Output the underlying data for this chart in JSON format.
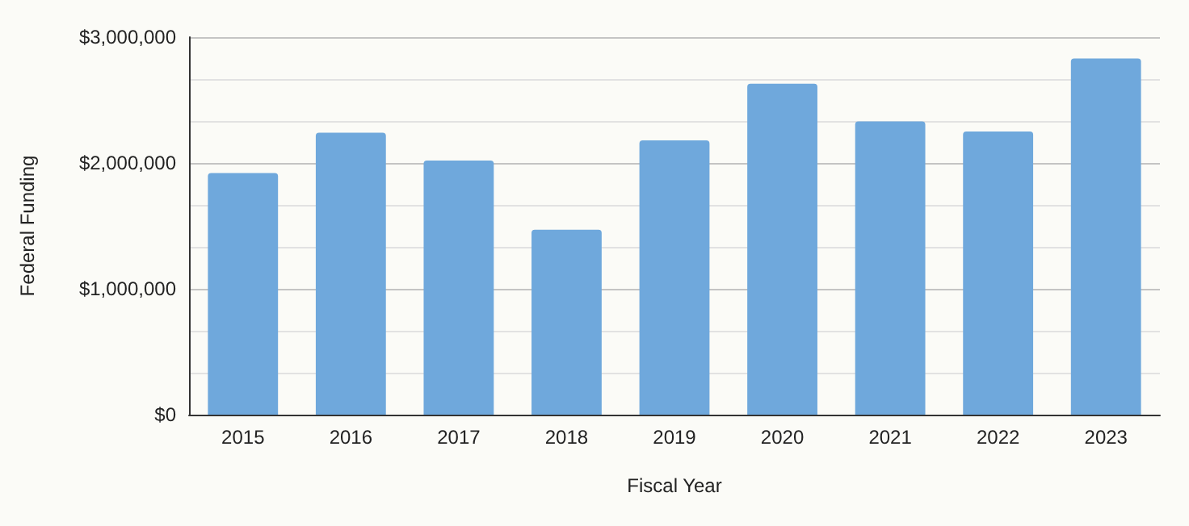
{
  "chart_data": {
    "type": "bar",
    "xlabel": "Fiscal Year",
    "ylabel": "Federal Funding",
    "categories": [
      "2015",
      "2016",
      "2017",
      "2018",
      "2019",
      "2020",
      "2021",
      "2022",
      "2023"
    ],
    "values": [
      1920000,
      2240000,
      2020000,
      1470000,
      2180000,
      2630000,
      2330000,
      2250000,
      2830000
    ],
    "color": "#6fa8dc",
    "ylim": [
      0,
      3000000
    ],
    "yticks": [
      {
        "value": 0,
        "label": "$0"
      },
      {
        "value": 333333,
        "label": null
      },
      {
        "value": 666667,
        "label": null
      },
      {
        "value": 1000000,
        "label": "$1,000,000"
      },
      {
        "value": 1333333,
        "label": null
      },
      {
        "value": 1666667,
        "label": null
      },
      {
        "value": 2000000,
        "label": "$2,000,000"
      },
      {
        "value": 2333333,
        "label": null
      },
      {
        "value": 2666667,
        "label": null
      },
      {
        "value": 3000000,
        "label": "$3,000,000"
      }
    ],
    "grid": true
  }
}
